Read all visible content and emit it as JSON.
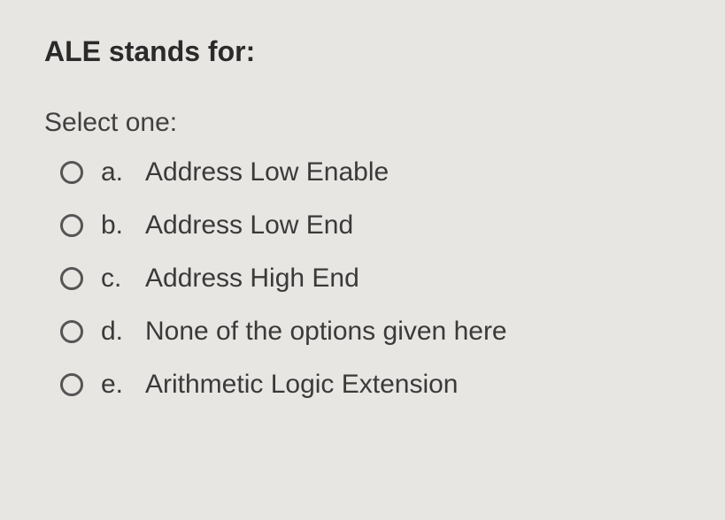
{
  "question": {
    "title": "ALE stands for:",
    "prompt": "Select one:",
    "options": [
      {
        "letter": "a.",
        "text": "Address Low Enable"
      },
      {
        "letter": "b.",
        "text": "Address Low End"
      },
      {
        "letter": "c.",
        "text": "Address High End"
      },
      {
        "letter": "d.",
        "text": "None of the options given here"
      },
      {
        "letter": "e.",
        "text": "Arithmetic Logic Extension"
      }
    ]
  },
  "colors": {
    "background": "#e8e6e3",
    "text": "#3a3a3a",
    "radio_border": "#555555"
  },
  "typography": {
    "title_fontsize": 32,
    "body_fontsize": 30,
    "title_weight": "bold"
  }
}
